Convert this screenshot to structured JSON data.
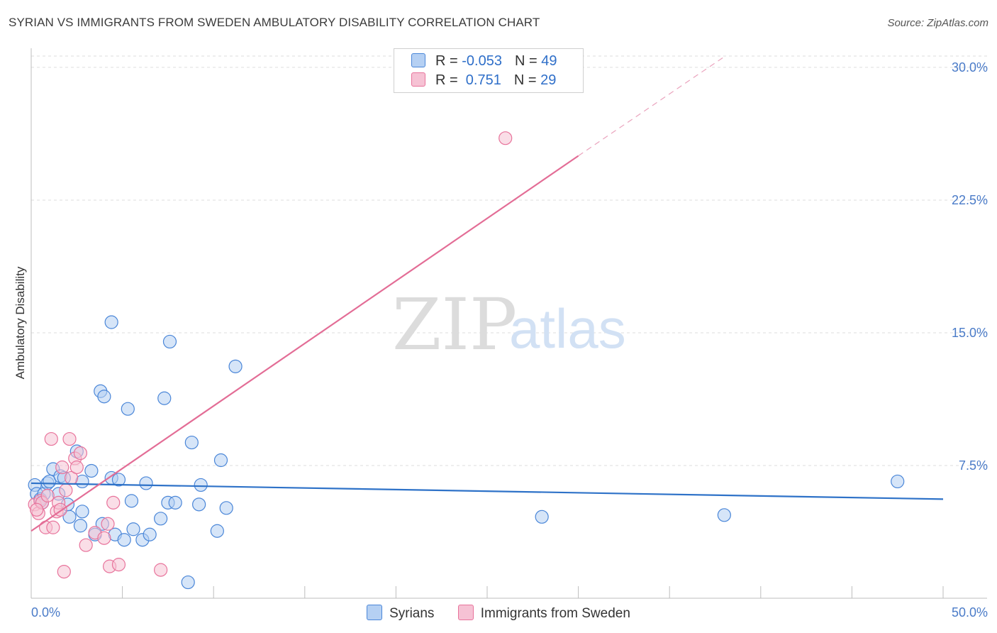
{
  "header": {
    "title": "SYRIAN VS IMMIGRANTS FROM SWEDEN AMBULATORY DISABILITY CORRELATION CHART",
    "source": "Source: ZipAtlas.com"
  },
  "watermark": {
    "zip": "ZIP",
    "atlas": "atlas"
  },
  "legend": {
    "rows": [
      {
        "r_label": "R = ",
        "r_value": "-0.053",
        "n_label": "N = ",
        "n_value": "49"
      },
      {
        "r_label": "R = ",
        "r_value": " 0.751",
        "n_label": "N = ",
        "n_value": "29"
      }
    ]
  },
  "chart_data": {
    "type": "scatter",
    "title": "SYRIAN VS IMMIGRANTS FROM SWEDEN AMBULATORY DISABILITY CORRELATION CHART",
    "xlabel": "",
    "ylabel": "Ambulatory Disability",
    "xlim": [
      0,
      50
    ],
    "ylim": [
      0,
      31
    ],
    "x_tick_labels": [
      "0.0%",
      "50.0%"
    ],
    "y_ticks": [
      7.5,
      15.0,
      22.5,
      30.0
    ],
    "y_tick_labels": [
      "7.5%",
      "15.0%",
      "22.5%",
      "30.0%"
    ],
    "colors": {
      "syrians": "#4a86d8",
      "sweden": "#e8739b",
      "syrians_fill": "#b5d0f3",
      "sweden_fill": "#f6c2d4"
    },
    "series": [
      {
        "name": "Syrians",
        "r": -0.053,
        "n": 49,
        "trend": {
          "x0": 0,
          "y0": 6.5,
          "x1": 50,
          "y1": 5.6
        },
        "points": [
          [
            0.2,
            6.4
          ],
          [
            0.3,
            5.9
          ],
          [
            0.5,
            5.6
          ],
          [
            0.7,
            5.9
          ],
          [
            0.9,
            6.5
          ],
          [
            1.0,
            6.6
          ],
          [
            1.2,
            7.3
          ],
          [
            1.5,
            5.9
          ],
          [
            1.6,
            6.9
          ],
          [
            1.8,
            6.8
          ],
          [
            2.0,
            5.3
          ],
          [
            2.1,
            4.6
          ],
          [
            2.5,
            8.3
          ],
          [
            2.7,
            4.1
          ],
          [
            2.8,
            4.9
          ],
          [
            3.3,
            7.2
          ],
          [
            3.5,
            3.6
          ],
          [
            3.8,
            11.7
          ],
          [
            3.9,
            4.2
          ],
          [
            4.0,
            11.4
          ],
          [
            4.4,
            15.6
          ],
          [
            4.4,
            6.8
          ],
          [
            4.6,
            3.6
          ],
          [
            4.8,
            6.7
          ],
          [
            5.1,
            3.3
          ],
          [
            5.3,
            10.7
          ],
          [
            5.5,
            5.5
          ],
          [
            5.6,
            3.9
          ],
          [
            6.1,
            3.3
          ],
          [
            6.3,
            6.5
          ],
          [
            6.5,
            3.6
          ],
          [
            7.1,
            4.5
          ],
          [
            7.3,
            11.3
          ],
          [
            7.5,
            5.4
          ],
          [
            7.6,
            14.5
          ],
          [
            7.9,
            5.4
          ],
          [
            8.6,
            0.9
          ],
          [
            8.8,
            8.8
          ],
          [
            9.2,
            5.3
          ],
          [
            9.3,
            6.4
          ],
          [
            10.2,
            3.8
          ],
          [
            10.4,
            7.8
          ],
          [
            10.7,
            5.1
          ],
          [
            11.2,
            13.1
          ],
          [
            2.8,
            6.6
          ],
          [
            0.6,
            5.4
          ],
          [
            28.0,
            4.6
          ],
          [
            38.0,
            4.7
          ],
          [
            47.5,
            6.6
          ]
        ]
      },
      {
        "name": "Immigrants from Sweden",
        "r": 0.751,
        "n": 29,
        "trend": {
          "x0": 0,
          "y0": 3.8,
          "x1": 30,
          "y1": 25.0,
          "dash_to_x": 38,
          "dash_to_y": 30.6
        },
        "points": [
          [
            0.2,
            5.3
          ],
          [
            0.4,
            4.8
          ],
          [
            0.5,
            5.5
          ],
          [
            0.6,
            5.4
          ],
          [
            0.8,
            4.0
          ],
          [
            0.9,
            5.8
          ],
          [
            1.1,
            9.0
          ],
          [
            1.2,
            4.0
          ],
          [
            1.4,
            4.9
          ],
          [
            1.5,
            5.4
          ],
          [
            1.7,
            7.4
          ],
          [
            1.8,
            1.5
          ],
          [
            1.9,
            6.1
          ],
          [
            2.1,
            9.0
          ],
          [
            2.2,
            6.8
          ],
          [
            2.4,
            7.9
          ],
          [
            2.5,
            7.4
          ],
          [
            2.7,
            8.2
          ],
          [
            3.0,
            3.0
          ],
          [
            3.5,
            3.7
          ],
          [
            4.0,
            3.4
          ],
          [
            4.2,
            4.2
          ],
          [
            4.3,
            1.8
          ],
          [
            4.5,
            5.4
          ],
          [
            4.8,
            1.9
          ],
          [
            7.1,
            1.6
          ],
          [
            26.0,
            26.0
          ],
          [
            1.6,
            5.0
          ],
          [
            0.3,
            5.0
          ]
        ]
      }
    ]
  },
  "bottom_legend": {
    "items": [
      "Syrians",
      "Immigrants from Sweden"
    ]
  }
}
